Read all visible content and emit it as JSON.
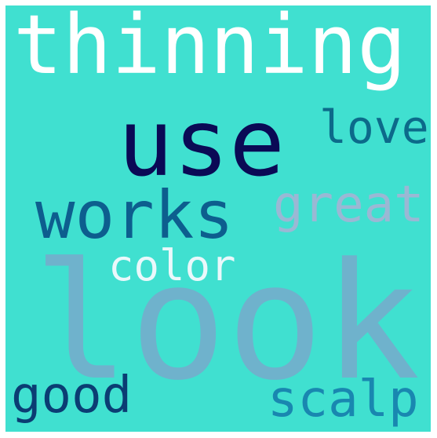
{
  "colors": {
    "frame": "#ffffff",
    "background": "#40e0d0"
  },
  "words": [
    {
      "id": "thinning",
      "text": "thinning",
      "color": "#ffffff"
    },
    {
      "id": "use",
      "text": "use",
      "color": "#0a0a55"
    },
    {
      "id": "love",
      "text": "love",
      "color": "#0c6a8a"
    },
    {
      "id": "works",
      "text": "works",
      "color": "#0d5e8e"
    },
    {
      "id": "great",
      "text": "great",
      "color": "#9ab8d4"
    },
    {
      "id": "color",
      "text": "color",
      "color": "#eaf8fb"
    },
    {
      "id": "look",
      "text": "look",
      "color": "#6fb2cc"
    },
    {
      "id": "good",
      "text": "good",
      "color": "#0b3d73"
    },
    {
      "id": "scalp",
      "text": "scalp",
      "color": "#1987b0"
    }
  ]
}
